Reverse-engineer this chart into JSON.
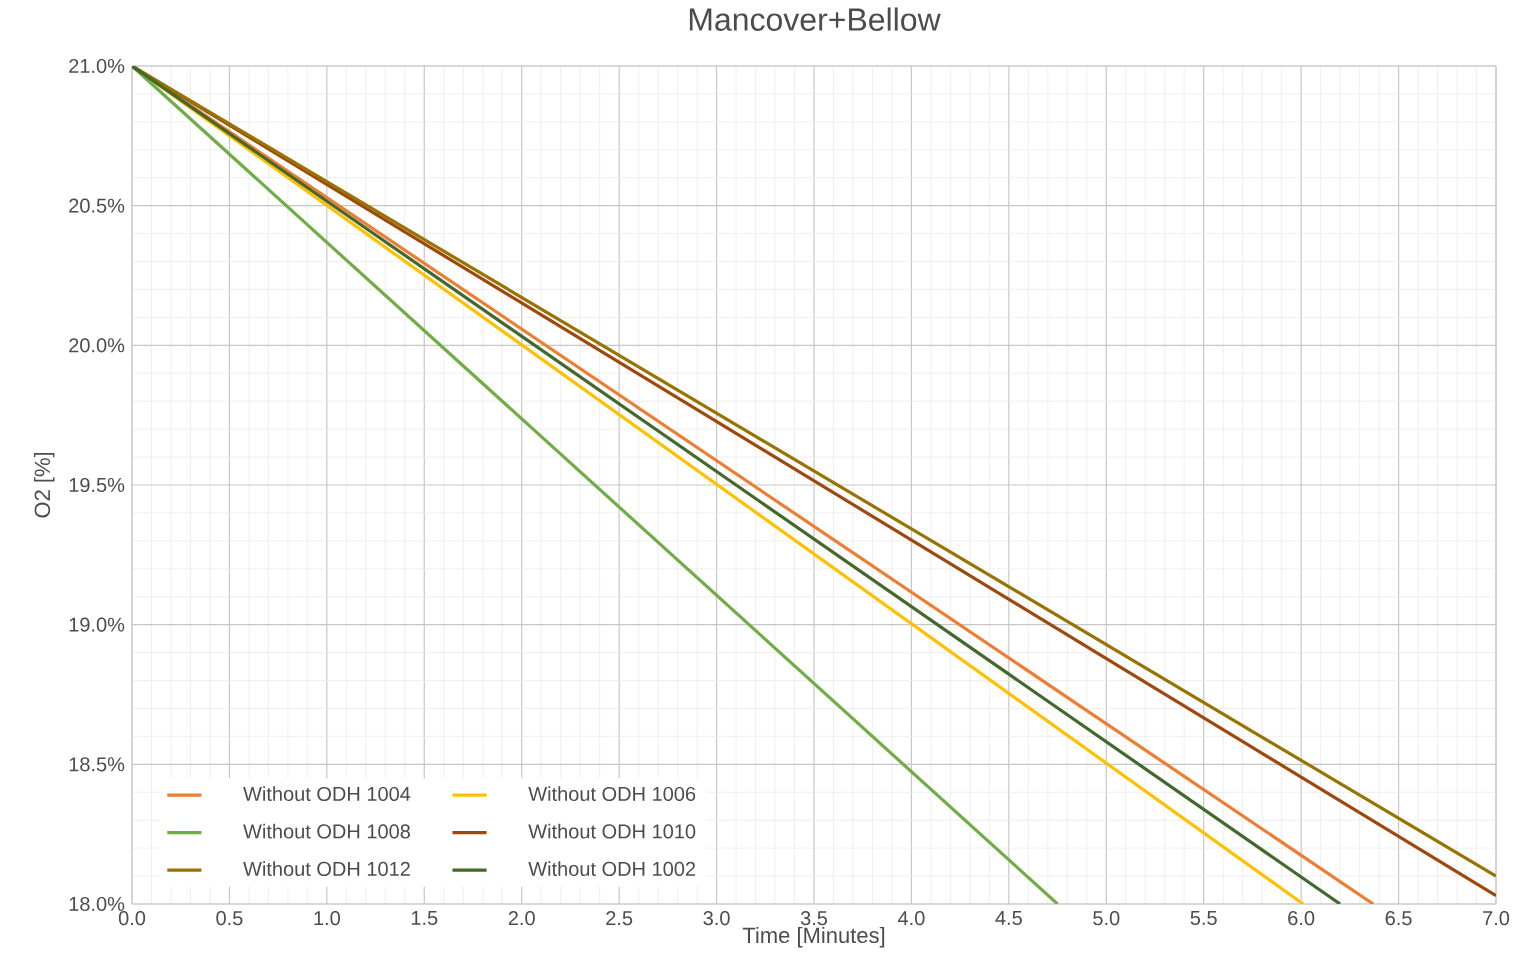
{
  "chart_data": {
    "type": "line",
    "title": "Mancover+Bellow",
    "xlabel": "Time [Minutes]",
    "ylabel": "O2 [%]",
    "xlim": [
      0,
      7
    ],
    "ylim": [
      18,
      21
    ],
    "xticks": [
      {
        "value": 0,
        "label": "0.0"
      },
      {
        "value": 0.5,
        "label": "0.5"
      },
      {
        "value": 1,
        "label": "1.0"
      },
      {
        "value": 1.5,
        "label": "1.5"
      },
      {
        "value": 2,
        "label": "2.0"
      },
      {
        "value": 2.5,
        "label": "2.5"
      },
      {
        "value": 3,
        "label": "3.0"
      },
      {
        "value": 3.5,
        "label": "3.5"
      },
      {
        "value": 4,
        "label": "4.0"
      },
      {
        "value": 4.5,
        "label": "4.5"
      },
      {
        "value": 5,
        "label": "5.0"
      },
      {
        "value": 5.5,
        "label": "5.5"
      },
      {
        "value": 6,
        "label": "6.0"
      },
      {
        "value": 6.5,
        "label": "6.5"
      },
      {
        "value": 7,
        "label": "7.0"
      }
    ],
    "yticks": [
      {
        "value": 18,
        "label": "18.0%"
      },
      {
        "value": 18.5,
        "label": "18.5%"
      },
      {
        "value": 19,
        "label": "19.0%"
      },
      {
        "value": 19.5,
        "label": "19.5%"
      },
      {
        "value": 20,
        "label": "20.0%"
      },
      {
        "value": 20.5,
        "label": "20.5%"
      },
      {
        "value": 21,
        "label": "21.0%"
      }
    ],
    "grid": true,
    "legend": "bottom left",
    "marker": "none",
    "line_style": "solid",
    "series": [
      {
        "name": "Without ODH 1004",
        "color": "#ed7d31",
        "x": [
          0,
          6.37
        ],
        "values": [
          21,
          18
        ]
      },
      {
        "name": "Without ODH 1006",
        "color": "#ffc000",
        "x": [
          0,
          6.01
        ],
        "values": [
          21,
          18
        ]
      },
      {
        "name": "Without ODH 1008",
        "color": "#70ad47",
        "x": [
          0,
          4.75
        ],
        "values": [
          21,
          18
        ]
      },
      {
        "name": "Without ODH 1010",
        "color": "#9e480e",
        "x": [
          0,
          7
        ],
        "values": [
          21,
          18.03
        ]
      },
      {
        "name": "Without ODH 1012",
        "color": "#997300",
        "x": [
          0,
          7
        ],
        "values": [
          21,
          18.1
        ]
      },
      {
        "name": "Without ODH 1002",
        "color": "#43682b",
        "x": [
          0,
          6.2
        ],
        "values": [
          21,
          18
        ]
      }
    ]
  }
}
